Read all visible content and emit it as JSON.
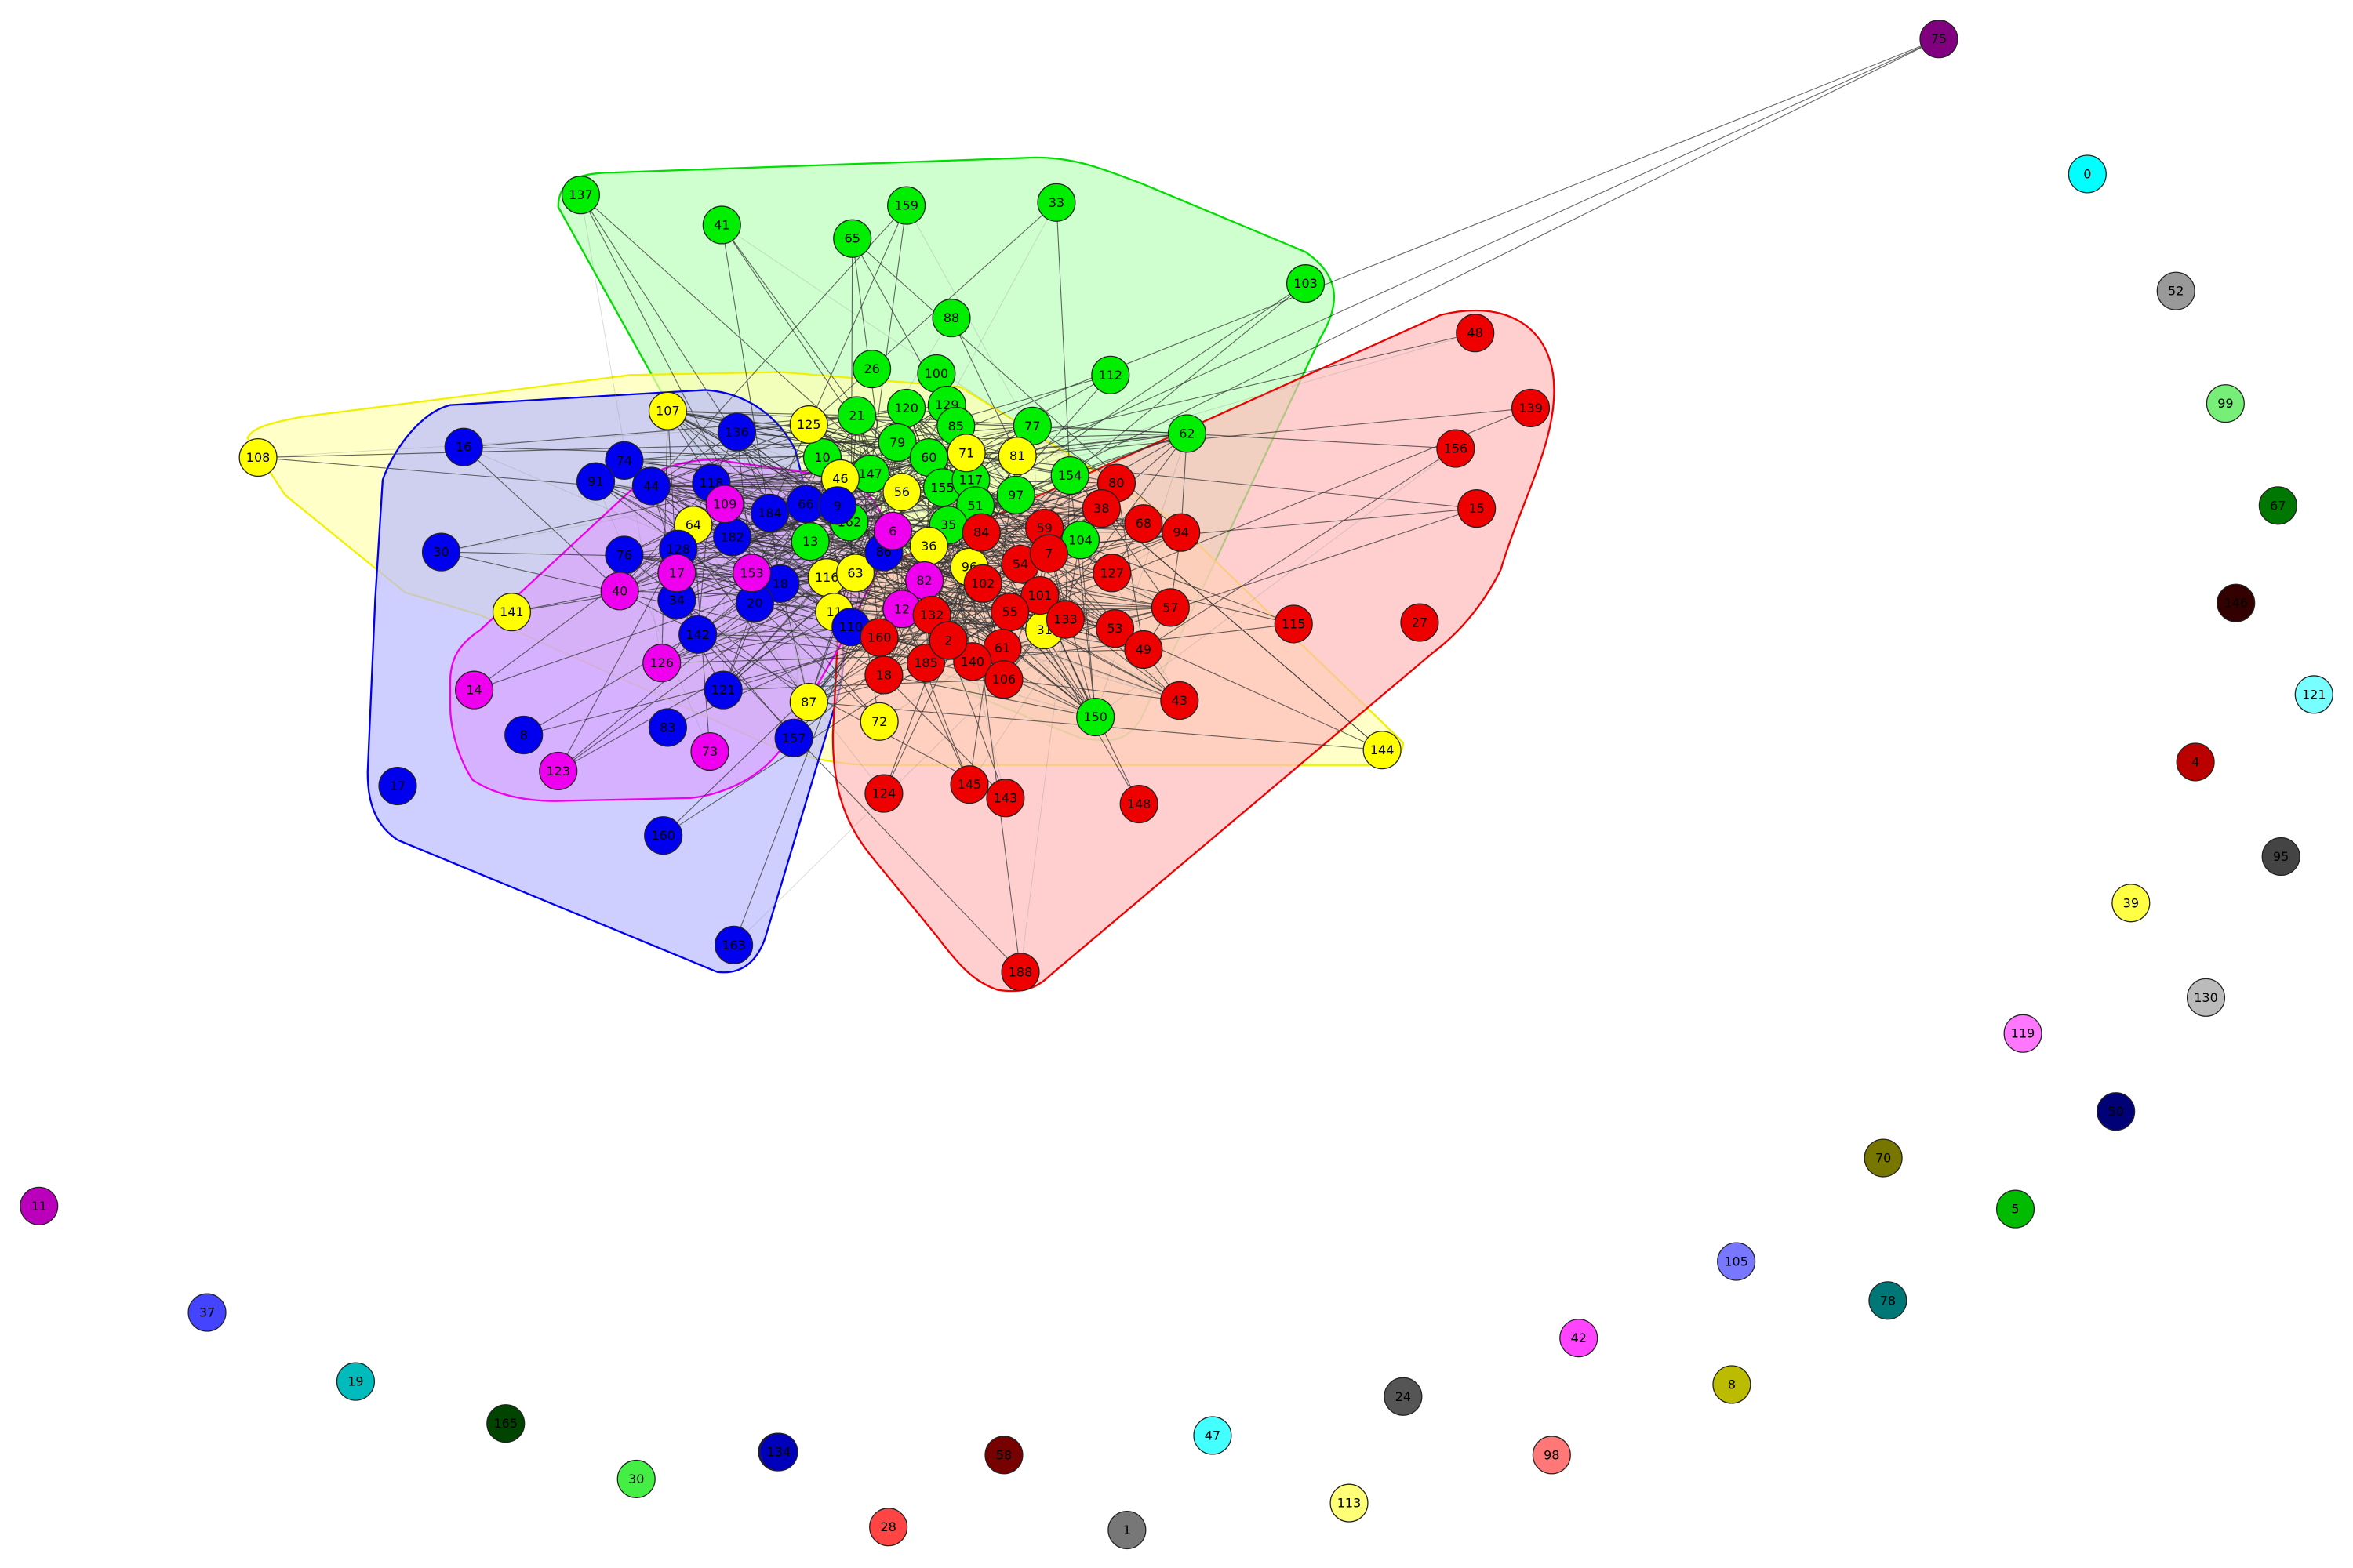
{
  "clusters": [
    {
      "id": "green",
      "fill": "#bbffbb",
      "stroke": "#00dd00"
    },
    {
      "id": "yellow",
      "fill": "#ffffb0",
      "stroke": "#f0f000"
    },
    {
      "id": "blue",
      "fill": "#bbbbff",
      "stroke": "#0000ee"
    },
    {
      "id": "red",
      "fill": "#ffbbbb",
      "stroke": "#ee0000"
    },
    {
      "id": "magenta",
      "fill": "#dd99ff",
      "stroke": "#ee00ee"
    }
  ],
  "nodes": [
    {
      "label": "137",
      "color": "#00ee00"
    },
    {
      "label": "41",
      "color": "#00ee00"
    },
    {
      "label": "65",
      "color": "#00ee00"
    },
    {
      "label": "159",
      "color": "#00ee00"
    },
    {
      "label": "33",
      "color": "#00ee00"
    },
    {
      "label": "103",
      "color": "#00ee00"
    },
    {
      "label": "88",
      "color": "#00ee00"
    },
    {
      "label": "26",
      "color": "#00ee00"
    },
    {
      "label": "100",
      "color": "#00ee00"
    },
    {
      "label": "112",
      "color": "#00ee00"
    },
    {
      "label": "21",
      "color": "#00ee00"
    },
    {
      "label": "120",
      "color": "#00ee00"
    },
    {
      "label": "129",
      "color": "#00ee00"
    },
    {
      "label": "85",
      "color": "#00ee00"
    },
    {
      "label": "77",
      "color": "#00ee00"
    },
    {
      "label": "62",
      "color": "#00ee00"
    },
    {
      "label": "79",
      "color": "#00ee00"
    },
    {
      "label": "60",
      "color": "#00ee00"
    },
    {
      "label": "10",
      "color": "#00ee00"
    },
    {
      "label": "147",
      "color": "#00ee00"
    },
    {
      "label": "155",
      "color": "#00ee00"
    },
    {
      "label": "117",
      "color": "#00ee00"
    },
    {
      "label": "154",
      "color": "#00ee00"
    },
    {
      "label": "97",
      "color": "#00ee00"
    },
    {
      "label": "51",
      "color": "#00ee00"
    },
    {
      "label": "162",
      "color": "#00ee00"
    },
    {
      "label": "13",
      "color": "#00ee00"
    },
    {
      "label": "35",
      "color": "#00ee00"
    },
    {
      "label": "104",
      "color": "#00ee00"
    },
    {
      "label": "150",
      "color": "#00ee00"
    },
    {
      "label": "107",
      "color": "#ffff00"
    },
    {
      "label": "125",
      "color": "#ffff00"
    },
    {
      "label": "108",
      "color": "#ffff00"
    },
    {
      "label": "71",
      "color": "#ffff00"
    },
    {
      "label": "81",
      "color": "#ffff00"
    },
    {
      "label": "46",
      "color": "#ffff00"
    },
    {
      "label": "56",
      "color": "#ffff00"
    },
    {
      "label": "64",
      "color": "#ffff00"
    },
    {
      "label": "36",
      "color": "#ffff00"
    },
    {
      "label": "96",
      "color": "#ffff00"
    },
    {
      "label": "116",
      "color": "#ffff00"
    },
    {
      "label": "63",
      "color": "#ffff00"
    },
    {
      "label": "141",
      "color": "#ffff00"
    },
    {
      "label": "11",
      "color": "#ffff00"
    },
    {
      "label": "31",
      "color": "#ffff00"
    },
    {
      "label": "87",
      "color": "#ffff00"
    },
    {
      "label": "72",
      "color": "#ffff00"
    },
    {
      "label": "144",
      "color": "#ffff00"
    },
    {
      "label": "16",
      "color": "#0000ee"
    },
    {
      "label": "136",
      "color": "#0000ee"
    },
    {
      "label": "74",
      "color": "#0000ee"
    },
    {
      "label": "91",
      "color": "#0000ee"
    },
    {
      "label": "44",
      "color": "#0000ee"
    },
    {
      "label": "118",
      "color": "#0000ee"
    },
    {
      "label": "184",
      "color": "#0000ee"
    },
    {
      "label": "66",
      "color": "#0000ee"
    },
    {
      "label": "9",
      "color": "#0000ee"
    },
    {
      "label": "182",
      "color": "#0000ee"
    },
    {
      "label": "30",
      "color": "#0000ee"
    },
    {
      "label": "128",
      "color": "#0000ee"
    },
    {
      "label": "76",
      "color": "#0000ee"
    },
    {
      "label": "34",
      "color": "#0000ee"
    },
    {
      "label": "86",
      "color": "#0000ee"
    },
    {
      "label": "18",
      "color": "#0000ee"
    },
    {
      "label": "20",
      "color": "#0000ee"
    },
    {
      "label": "142",
      "color": "#0000ee"
    },
    {
      "label": "110",
      "color": "#0000ee"
    },
    {
      "label": "121",
      "color": "#0000ee"
    },
    {
      "label": "83",
      "color": "#0000ee"
    },
    {
      "label": "8",
      "color": "#0000ee"
    },
    {
      "label": "157",
      "color": "#0000ee"
    },
    {
      "label": "160",
      "color": "#0000ee"
    },
    {
      "label": "163",
      "color": "#0000ee"
    },
    {
      "label": "17",
      "color": "#0000ee"
    },
    {
      "label": "2",
      "color": "#0000ee"
    },
    {
      "label": "109",
      "color": "#ee00ee"
    },
    {
      "label": "17",
      "color": "#ee00ee"
    },
    {
      "label": "40",
      "color": "#ee00ee"
    },
    {
      "label": "153",
      "color": "#ee00ee"
    },
    {
      "label": "6",
      "color": "#ee00ee"
    },
    {
      "label": "82",
      "color": "#ee00ee"
    },
    {
      "label": "12",
      "color": "#ee00ee"
    },
    {
      "label": "14",
      "color": "#ee00ee"
    },
    {
      "label": "126",
      "color": "#ee00ee"
    },
    {
      "label": "73",
      "color": "#ee00ee"
    },
    {
      "label": "123",
      "color": "#ee00ee"
    },
    {
      "label": "48",
      "color": "#ee0000"
    },
    {
      "label": "139",
      "color": "#ee0000"
    },
    {
      "label": "156",
      "color": "#ee0000"
    },
    {
      "label": "15",
      "color": "#ee0000"
    },
    {
      "label": "80",
      "color": "#ee0000"
    },
    {
      "label": "38",
      "color": "#ee0000"
    },
    {
      "label": "68",
      "color": "#ee0000"
    },
    {
      "label": "94",
      "color": "#ee0000"
    },
    {
      "label": "84",
      "color": "#ee0000"
    },
    {
      "label": "59",
      "color": "#ee0000"
    },
    {
      "label": "54",
      "color": "#ee0000"
    },
    {
      "label": "7",
      "color": "#ee0000"
    },
    {
      "label": "102",
      "color": "#ee0000"
    },
    {
      "label": "127",
      "color": "#ee0000"
    },
    {
      "label": "101",
      "color": "#ee0000"
    },
    {
      "label": "55",
      "color": "#ee0000"
    },
    {
      "label": "132",
      "color": "#ee0000"
    },
    {
      "label": "133",
      "color": "#ee0000"
    },
    {
      "label": "53",
      "color": "#ee0000"
    },
    {
      "label": "57",
      "color": "#ee0000"
    },
    {
      "label": "115",
      "color": "#ee0000"
    },
    {
      "label": "27",
      "color": "#ee0000"
    },
    {
      "label": "160",
      "color": "#ee0000"
    },
    {
      "label": "61",
      "color": "#ee0000"
    },
    {
      "label": "140",
      "color": "#ee0000"
    },
    {
      "label": "185",
      "color": "#ee0000"
    },
    {
      "label": "49",
      "color": "#ee0000"
    },
    {
      "label": "2",
      "color": "#ee0000"
    },
    {
      "label": "18",
      "color": "#ee0000"
    },
    {
      "label": "106",
      "color": "#ee0000"
    },
    {
      "label": "43",
      "color": "#ee0000"
    },
    {
      "label": "124",
      "color": "#ee0000"
    },
    {
      "label": "145",
      "color": "#ee0000"
    },
    {
      "label": "143",
      "color": "#ee0000"
    },
    {
      "label": "148",
      "color": "#ee0000"
    },
    {
      "label": "188",
      "color": "#ee0000"
    },
    {
      "label": "75",
      "color": "#800080"
    },
    {
      "label": "0",
      "color": "#00ffff"
    },
    {
      "label": "52",
      "color": "#999999"
    },
    {
      "label": "99",
      "color": "#77ee77"
    },
    {
      "label": "67",
      "color": "#007700"
    },
    {
      "label": "146",
      "color": "#330000"
    },
    {
      "label": "121",
      "color": "#77ffff"
    },
    {
      "label": "4",
      "color": "#bb0000"
    },
    {
      "label": "95",
      "color": "#444444"
    },
    {
      "label": "39",
      "color": "#ffff44"
    },
    {
      "label": "130",
      "color": "#bbbbbb"
    },
    {
      "label": "119",
      "color": "#ff77ff"
    },
    {
      "label": "50",
      "color": "#000077"
    },
    {
      "label": "70",
      "color": "#777700"
    },
    {
      "label": "5",
      "color": "#00bb00"
    },
    {
      "label": "105",
      "color": "#7777ff"
    },
    {
      "label": "78",
      "color": "#007777"
    },
    {
      "label": "42",
      "color": "#ff44ff"
    },
    {
      "label": "8",
      "color": "#bbbb00"
    },
    {
      "label": "24",
      "color": "#555555"
    },
    {
      "label": "98",
      "color": "#ff7777"
    },
    {
      "label": "113",
      "color": "#ffff77"
    },
    {
      "label": "47",
      "color": "#44ffff"
    },
    {
      "label": "1",
      "color": "#777777"
    },
    {
      "label": "58",
      "color": "#770000"
    },
    {
      "label": "28",
      "color": "#ff4444"
    },
    {
      "label": "134",
      "color": "#0000bb"
    },
    {
      "label": "30",
      "color": "#44ee44"
    },
    {
      "label": "165",
      "color": "#004400"
    },
    {
      "label": "19",
      "color": "#00bbbb"
    },
    {
      "label": "37",
      "color": "#4444ff"
    },
    {
      "label": "11",
      "color": "#bb00bb"
    }
  ]
}
